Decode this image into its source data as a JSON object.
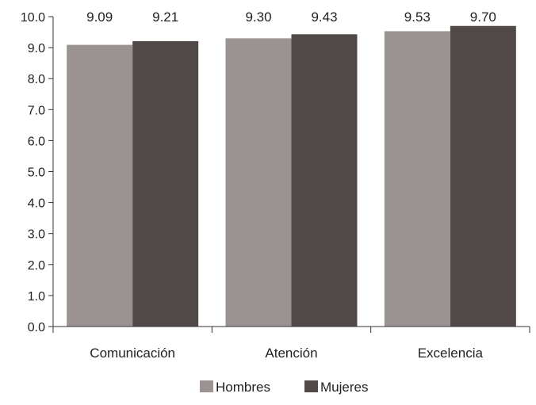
{
  "chart_data": {
    "type": "bar",
    "categories": [
      "Comunicación",
      "Atención",
      "Excelencia"
    ],
    "series": [
      {
        "name": "Hombres",
        "values": [
          9.09,
          9.3,
          9.53
        ],
        "color": "#9b9391"
      },
      {
        "name": "Mujeres",
        "values": [
          9.21,
          9.43,
          9.7
        ],
        "color": "#514947"
      }
    ],
    "data_labels": [
      [
        "9.09",
        "9.30",
        "9.53"
      ],
      [
        "9.21",
        "9.43",
        "9.70"
      ]
    ],
    "ylim": [
      0,
      10
    ],
    "yticks": [
      "0.0",
      "1.0",
      "2.0",
      "3.0",
      "4.0",
      "5.0",
      "6.0",
      "7.0",
      "8.0",
      "9.0",
      "10.0"
    ],
    "grid": false,
    "legend_position": "bottom-center",
    "axis_color": "#333333"
  }
}
